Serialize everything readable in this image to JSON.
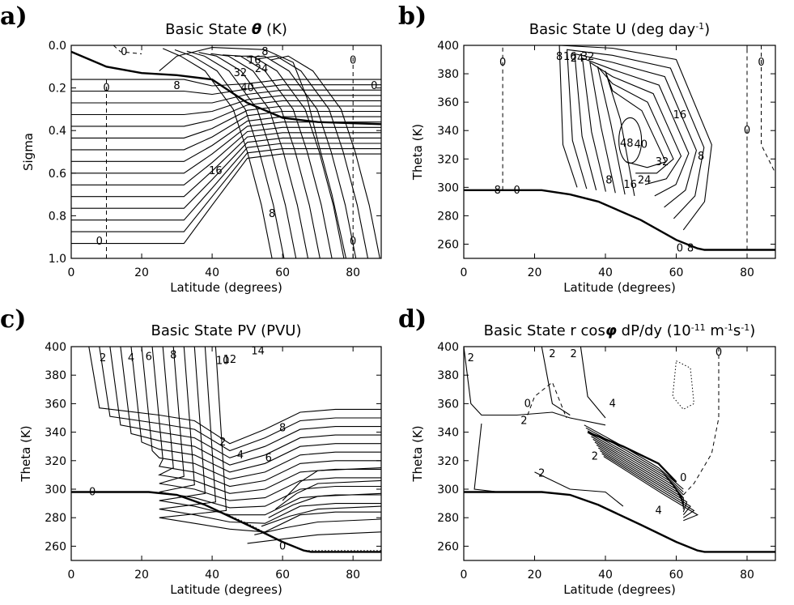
{
  "chart_data": [
    {
      "panel": "a)",
      "type": "contour",
      "title": "Basic State θ  (K)",
      "title_parts": [
        "Basic State ",
        "θ",
        "  (K)"
      ],
      "xlabel": "Latitude (degrees)",
      "ylabel": "Sigma",
      "xlim": [
        0,
        88
      ],
      "ylim": [
        1.0,
        0.0
      ],
      "y_inverted": true,
      "xticks": [
        "0",
        "20",
        "40",
        "60",
        "80"
      ],
      "yticks": [
        "0.0",
        "0.2",
        "0.4",
        "0.6",
        "0.8",
        "1.0"
      ],
      "xtick_values": [
        0,
        20,
        40,
        60,
        80
      ],
      "ytick_values": [
        0.0,
        0.2,
        0.4,
        0.6,
        0.8,
        1.0
      ],
      "contour_labels": [
        {
          "text": "0",
          "x": 15,
          "y": 0.03
        },
        {
          "text": "0",
          "x": 10,
          "y": 0.2
        },
        {
          "text": "8",
          "x": 30,
          "y": 0.19
        },
        {
          "text": "8",
          "x": 55,
          "y": 0.03
        },
        {
          "text": "16",
          "x": 52,
          "y": 0.07
        },
        {
          "text": "24",
          "x": 54,
          "y": 0.11
        },
        {
          "text": "32",
          "x": 48,
          "y": 0.13
        },
        {
          "text": "40",
          "x": 50,
          "y": 0.2
        },
        {
          "text": "16",
          "x": 41,
          "y": 0.59
        },
        {
          "text": "8",
          "x": 57,
          "y": 0.79
        },
        {
          "text": "0",
          "x": 8,
          "y": 0.92
        },
        {
          "text": "0",
          "x": 80,
          "y": 0.92
        },
        {
          "text": "0",
          "x": 80,
          "y": 0.07
        },
        {
          "text": "0",
          "x": 86,
          "y": 0.19
        }
      ],
      "zero_contour_dashed": true,
      "tropopause": [
        [
          0,
          0.03
        ],
        [
          10,
          0.1
        ],
        [
          20,
          0.13
        ],
        [
          30,
          0.14
        ],
        [
          40,
          0.16
        ],
        [
          50,
          0.27
        ],
        [
          60,
          0.34
        ],
        [
          70,
          0.36
        ],
        [
          88,
          0.37
        ]
      ]
    },
    {
      "panel": "b)",
      "type": "contour",
      "title": "Basic State U  (deg day⁻¹)",
      "title_parts": [
        "Basic State U  (deg day",
        "-1",
        ")"
      ],
      "xlabel": "Latitude (degrees)",
      "ylabel": "Theta (K)",
      "xlim": [
        0,
        88
      ],
      "ylim": [
        250,
        400
      ],
      "xticks": [
        "0",
        "20",
        "40",
        "60",
        "80"
      ],
      "yticks": [
        "260",
        "280",
        "300",
        "320",
        "340",
        "360",
        "380",
        "400"
      ],
      "xtick_values": [
        0,
        20,
        40,
        60,
        80
      ],
      "ytick_values": [
        260,
        280,
        300,
        320,
        340,
        360,
        380,
        400
      ],
      "contour_labels": [
        {
          "text": "0",
          "x": 11,
          "y": 388
        },
        {
          "text": "0",
          "x": 84,
          "y": 388
        },
        {
          "text": "8",
          "x": 27,
          "y": 392
        },
        {
          "text": "16",
          "x": 30,
          "y": 392
        },
        {
          "text": "24",
          "x": 32,
          "y": 391
        },
        {
          "text": "32",
          "x": 35,
          "y": 392
        },
        {
          "text": "16",
          "x": 61,
          "y": 351
        },
        {
          "text": "40",
          "x": 50,
          "y": 330
        },
        {
          "text": "48",
          "x": 46,
          "y": 331
        },
        {
          "text": "8",
          "x": 67,
          "y": 322
        },
        {
          "text": "0",
          "x": 80,
          "y": 340
        },
        {
          "text": "32",
          "x": 56,
          "y": 318
        },
        {
          "text": "24",
          "x": 51,
          "y": 305
        },
        {
          "text": "16",
          "x": 47,
          "y": 302
        },
        {
          "text": "8",
          "x": 41,
          "y": 305
        },
        {
          "text": "-8",
          "x": 9,
          "y": 298
        },
        {
          "text": "0",
          "x": 15,
          "y": 298
        },
        {
          "text": "0",
          "x": 61,
          "y": 257
        },
        {
          "text": "8",
          "x": 64,
          "y": 257
        }
      ],
      "zero_contour_dashed": true,
      "lower_boundary": [
        [
          0,
          298
        ],
        [
          22,
          298
        ],
        [
          30,
          295
        ],
        [
          38,
          290
        ],
        [
          50,
          277
        ],
        [
          60,
          263
        ],
        [
          66,
          257
        ],
        [
          68,
          256
        ],
        [
          88,
          256
        ]
      ]
    },
    {
      "panel": "c)",
      "type": "contour",
      "title": "Basic State PV  (PVU)",
      "title_parts": [
        "Basic State PV  (PVU)"
      ],
      "xlabel": "Latitude (degrees)",
      "ylabel": "Theta (K)",
      "xlim": [
        0,
        88
      ],
      "ylim": [
        250,
        400
      ],
      "xticks": [
        "0",
        "20",
        "40",
        "60",
        "80"
      ],
      "yticks": [
        "260",
        "280",
        "300",
        "320",
        "340",
        "360",
        "380",
        "400"
      ],
      "xtick_values": [
        0,
        20,
        40,
        60,
        80
      ],
      "ytick_values": [
        260,
        280,
        300,
        320,
        340,
        360,
        380,
        400
      ],
      "contour_labels": [
        {
          "text": "2",
          "x": 9,
          "y": 392
        },
        {
          "text": "4",
          "x": 17,
          "y": 392
        },
        {
          "text": "6",
          "x": 22,
          "y": 393
        },
        {
          "text": "8",
          "x": 29,
          "y": 394
        },
        {
          "text": "10",
          "x": 43,
          "y": 390
        },
        {
          "text": "12",
          "x": 45,
          "y": 391
        },
        {
          "text": "14",
          "x": 53,
          "y": 397
        },
        {
          "text": "8",
          "x": 60,
          "y": 343
        },
        {
          "text": "2",
          "x": 43,
          "y": 333
        },
        {
          "text": "4",
          "x": 48,
          "y": 324
        },
        {
          "text": "6",
          "x": 56,
          "y": 322
        },
        {
          "text": "0",
          "x": 6,
          "y": 298
        },
        {
          "text": "0",
          "x": 60,
          "y": 260
        }
      ],
      "lower_boundary": [
        [
          0,
          298
        ],
        [
          22,
          298
        ],
        [
          30,
          296
        ],
        [
          38,
          289
        ],
        [
          50,
          275
        ],
        [
          60,
          263
        ],
        [
          66,
          257
        ],
        [
          68,
          256
        ],
        [
          88,
          256
        ]
      ]
    },
    {
      "panel": "d)",
      "type": "contour",
      "title": "Basic State r cosφ dP/dy  (10⁻¹¹ m⁻¹s⁻¹)",
      "title_parts": [
        "Basic State r cos",
        "φ",
        " dP/dy  (10",
        "-11",
        " m",
        "-1",
        "s",
        "-1",
        ")"
      ],
      "xlabel": "Latitude (degrees)",
      "ylabel": "Theta (K)",
      "xlim": [
        0,
        88
      ],
      "ylim": [
        250,
        400
      ],
      "xticks": [
        "0",
        "20",
        "40",
        "60",
        "80"
      ],
      "yticks": [
        "260",
        "280",
        "300",
        "320",
        "340",
        "360",
        "380",
        "400"
      ],
      "xtick_values": [
        0,
        20,
        40,
        60,
        80
      ],
      "ytick_values": [
        260,
        280,
        300,
        320,
        340,
        360,
        380,
        400
      ],
      "contour_labels": [
        {
          "text": "2",
          "x": 2,
          "y": 392
        },
        {
          "text": "2",
          "x": 25,
          "y": 395
        },
        {
          "text": "2",
          "x": 31,
          "y": 395
        },
        {
          "text": "0",
          "x": 72,
          "y": 396
        },
        {
          "text": "4",
          "x": 42,
          "y": 360
        },
        {
          "text": "0",
          "x": 18,
          "y": 360
        },
        {
          "text": "2",
          "x": 17,
          "y": 348
        },
        {
          "text": "2",
          "x": 37,
          "y": 323
        },
        {
          "text": "2",
          "x": 22,
          "y": 311
        },
        {
          "text": "0",
          "x": 62,
          "y": 308
        },
        {
          "text": "4",
          "x": 55,
          "y": 285
        }
      ],
      "lower_boundary": [
        [
          0,
          298
        ],
        [
          22,
          298
        ],
        [
          30,
          296
        ],
        [
          38,
          289
        ],
        [
          50,
          275
        ],
        [
          60,
          263
        ],
        [
          66,
          257
        ],
        [
          68,
          256
        ],
        [
          88,
          256
        ]
      ]
    }
  ]
}
